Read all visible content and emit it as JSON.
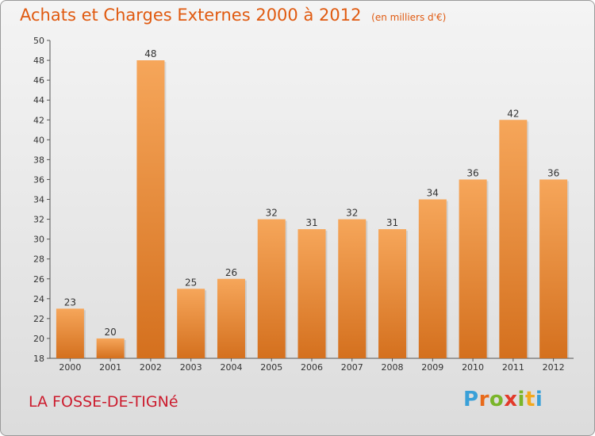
{
  "header": {
    "title": "Achats et Charges Externes 2000 à 2012",
    "unit": "(en milliers d'€)"
  },
  "footer": {
    "commune": "LA FOSSE-DE-TIGNé",
    "brand_letters": [
      "P",
      "r",
      "o",
      "x",
      "i",
      "t",
      "i"
    ],
    "brand_colors": [
      "#3aa0d8",
      "#e86a1a",
      "#7ab52a",
      "#e23a2a",
      "#7ab52a",
      "#f2a81e",
      "#3aa0d8"
    ]
  },
  "colors": {
    "bar_light": "#f6a65a",
    "bar_dark": "#d4701e",
    "title": "#e05a10",
    "commune": "#cc1c2e"
  },
  "chart_data": {
    "type": "bar",
    "categories": [
      "2000",
      "2001",
      "2002",
      "2003",
      "2004",
      "2005",
      "2006",
      "2007",
      "2008",
      "2009",
      "2010",
      "2011",
      "2012"
    ],
    "values": [
      23,
      20,
      48,
      25,
      26,
      32,
      31,
      32,
      31,
      34,
      36,
      42,
      36
    ],
    "data_labels": [
      "23",
      "20",
      "48",
      "25",
      "26",
      "32",
      "31",
      "32",
      "31",
      "34",
      "36",
      "42",
      "36"
    ],
    "title": "Achats et Charges Externes 2000 à 2012",
    "unit_label": "(en milliers d'€)",
    "ylim": [
      18,
      50
    ],
    "yticks": [
      18,
      20,
      22,
      24,
      26,
      28,
      30,
      32,
      34,
      36,
      38,
      40,
      42,
      44,
      46,
      48,
      50
    ],
    "grid": false,
    "legend": "none"
  }
}
